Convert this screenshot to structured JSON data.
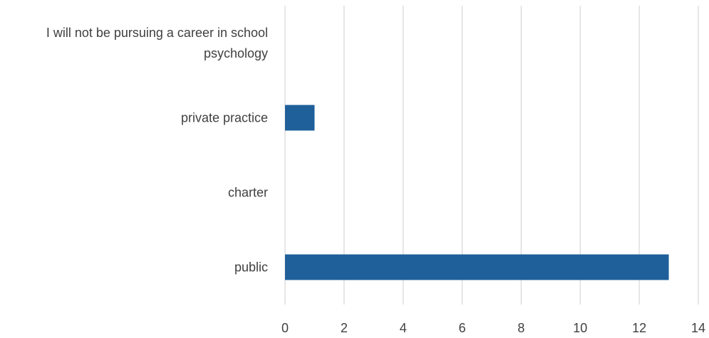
{
  "chart_data": {
    "type": "bar",
    "orientation": "horizontal",
    "title": "",
    "xlabel": "",
    "ylabel": "",
    "categories": [
      [
        "I will not be pursuing a career in school",
        "psychology"
      ],
      [
        "private practice"
      ],
      [
        "charter"
      ],
      [
        "public"
      ]
    ],
    "values": [
      0,
      1,
      0,
      13
    ],
    "xlim": [
      0,
      14
    ],
    "xticks": [
      "0",
      "2",
      "4",
      "6",
      "8",
      "10",
      "12",
      "14"
    ],
    "grid": "vertical",
    "bar_color": "#1f5f9a",
    "legend": "none"
  }
}
